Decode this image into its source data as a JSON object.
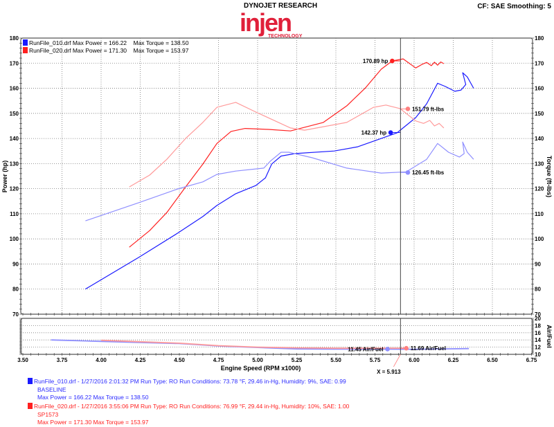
{
  "header": {
    "brand_top": "DYNOJET RESEARCH",
    "logo_text": "injen",
    "logo_sub": "TECHNOLOGY",
    "settings": "CF: SAE  Smoothing: 5"
  },
  "legend": [
    {
      "label": "RunFile_010.drf Max Power = 166.22",
      "torque": "Max Torque = 138.50",
      "color": "#1a1aff"
    },
    {
      "label": "RunFile_020.drf Max Power = 171.30",
      "torque": "Max Torque = 153.97",
      "color": "#ff2020"
    }
  ],
  "footer": {
    "runs": [
      {
        "line1": "RunFile_010.drf - 1/27/2016 2:01:32 PM  Run Type: RO  Run Conditions: 73.78 °F, 29.46 in-Hg,  Humidity:  9%, SAE: 0.99",
        "line2": "BASELINE",
        "line3": "Max Power = 166.22  Max Torque = 138.50",
        "color": "#2a2aff"
      },
      {
        "line1": "RunFile_020.drf - 1/27/2016 3:55:06 PM  Run Type: RO  Run Conditions: 76.99 °F, 29.44 in-Hg,  Humidity:  10%, SAE: 1.00",
        "line2": "SP1573",
        "line3": "Max Power = 171.30  Max Torque = 153.97",
        "color": "#ff2020"
      }
    ]
  },
  "chart_data": [
    {
      "type": "line",
      "xlabel": "Engine Speed (RPM x1000)",
      "ylabel": "Power (hp)",
      "ylabel_right": "Torque (ft-lbs)",
      "xlim": [
        3.5,
        6.75
      ],
      "ylim": [
        70,
        180
      ],
      "xticks": [
        "3.50",
        "3.75",
        "4.00",
        "4.25",
        "4.50",
        "4.75",
        "5.00",
        "5.25",
        "5.50",
        "5.75",
        "6.00",
        "6.25",
        "6.50",
        "6.75"
      ],
      "yticks": [
        "70",
        "80",
        "90",
        "100",
        "110",
        "120",
        "130",
        "140",
        "150",
        "160",
        "170",
        "180"
      ],
      "grid": true,
      "cursor": {
        "x": 5.913,
        "label": "X = 5.913"
      },
      "series": [
        {
          "name": "RunFile_010.drf Power",
          "color": "#1a1aff",
          "x": [
            3.9,
            4.24,
            4.49,
            4.65,
            4.74,
            4.86,
            4.99,
            5.05,
            5.09,
            5.15,
            5.24,
            5.49,
            5.64,
            5.79,
            5.89,
            6.01,
            6.08,
            6.15,
            6.2,
            6.26,
            6.3,
            6.33,
            6.31,
            6.34,
            6.38
          ],
          "y": [
            80,
            92.6,
            102.3,
            108.9,
            113.3,
            118,
            121.3,
            124.3,
            129.8,
            133,
            134,
            135,
            136.7,
            140,
            142.2,
            148.3,
            153.8,
            162,
            160.7,
            158.8,
            159.3,
            161.5,
            166.2,
            164.5,
            160
          ]
        },
        {
          "name": "RunFile_020.drf Power",
          "color": "#ff2020",
          "x": [
            4.18,
            4.31,
            4.42,
            4.54,
            4.65,
            4.74,
            4.83,
            4.92,
            5.07,
            5.21,
            5.42,
            5.57,
            5.69,
            5.79,
            5.86,
            5.93,
            6.01,
            6.05,
            6.08,
            6.11,
            6.13,
            6.15,
            6.17,
            6.19
          ],
          "y": [
            96.7,
            103.3,
            110.5,
            120.7,
            129.8,
            138,
            142.8,
            144,
            143.6,
            143,
            146.4,
            153,
            160.2,
            167.6,
            170.9,
            171.7,
            168.1,
            169.5,
            170.3,
            169,
            170.4,
            169.2,
            170.5,
            169.8
          ]
        },
        {
          "name": "RunFile_010.drf Torque",
          "color": "#8f8fff",
          "x": [
            3.9,
            4.24,
            4.49,
            4.65,
            4.74,
            4.86,
            5.04,
            5.08,
            5.15,
            5.2,
            5.35,
            5.57,
            5.79,
            5.95,
            6.08,
            6.15,
            6.22,
            6.29,
            6.32,
            6.31,
            6.34,
            6.38
          ],
          "y": [
            107.2,
            114.4,
            119.9,
            122.7,
            125.7,
            127,
            128.2,
            130.9,
            134.5,
            134.5,
            132.3,
            128.2,
            126.2,
            126.7,
            131.7,
            138,
            134.5,
            132.6,
            134,
            138.6,
            134.5,
            131.7
          ]
        },
        {
          "name": "RunFile_020.drf Torque",
          "color": "#ff9a9a",
          "x": [
            4.18,
            4.31,
            4.42,
            4.54,
            4.65,
            4.74,
            4.86,
            4.99,
            5.21,
            5.3,
            5.57,
            5.74,
            5.82,
            5.91,
            6.01,
            6.06,
            6.1,
            6.13,
            6.16,
            6.19
          ],
          "y": [
            120.7,
            125.4,
            131.7,
            140,
            146.4,
            152.4,
            154.4,
            150.5,
            144.2,
            143.3,
            146.4,
            152.4,
            153.3,
            151.9,
            147,
            146,
            147.2,
            145,
            146,
            144.2
          ]
        }
      ],
      "annotations": [
        {
          "text": "170.89 hp",
          "x": 5.86,
          "y": 170.89,
          "color": "#ff2020",
          "side": "left"
        },
        {
          "text": "142.37 hp",
          "x": 5.85,
          "y": 142.37,
          "color": "#1a1aff",
          "side": "left"
        },
        {
          "text": "151.79 ft-lbs",
          "x": 5.96,
          "y": 151.79,
          "color": "#ff8080",
          "side": "right"
        },
        {
          "text": "126.45 ft-lbs",
          "x": 5.96,
          "y": 126.45,
          "color": "#8f8fff",
          "side": "right"
        }
      ]
    },
    {
      "type": "line",
      "ylabel_right": "Air/Fuel",
      "xlim": [
        3.5,
        6.75
      ],
      "ylim": [
        10,
        20
      ],
      "yticks": [
        "10",
        "12",
        "14",
        "16",
        "18",
        "20"
      ],
      "grid": true,
      "series": [
        {
          "name": "RunFile_010.drf Air/Fuel",
          "color": "#8f8fff",
          "x": [
            3.68,
            4.0,
            4.5,
            4.75,
            5.0,
            5.25,
            5.5,
            5.83,
            6.0,
            6.35
          ],
          "y": [
            14,
            13.6,
            13,
            12.3,
            11.9,
            11.5,
            11.45,
            11.45,
            11.4,
            11.6
          ]
        },
        {
          "name": "RunFile_020.drf Air/Fuel",
          "color": "#ff9a9a",
          "x": [
            4.0,
            4.25,
            4.5,
            4.75,
            5.0,
            5.25,
            5.5,
            5.75,
            5.95
          ],
          "y": [
            13.9,
            13.5,
            13.1,
            12.4,
            12.0,
            11.8,
            11.7,
            11.7,
            11.69
          ]
        }
      ],
      "annotations": [
        {
          "text": "11.45 Air/Fuel",
          "x": 5.83,
          "y": 11.45,
          "color": "#8f8fff",
          "side": "left"
        },
        {
          "text": "11.69 Air/Fuel",
          "x": 5.95,
          "y": 11.69,
          "color": "#ff8080",
          "side": "right"
        }
      ]
    }
  ]
}
